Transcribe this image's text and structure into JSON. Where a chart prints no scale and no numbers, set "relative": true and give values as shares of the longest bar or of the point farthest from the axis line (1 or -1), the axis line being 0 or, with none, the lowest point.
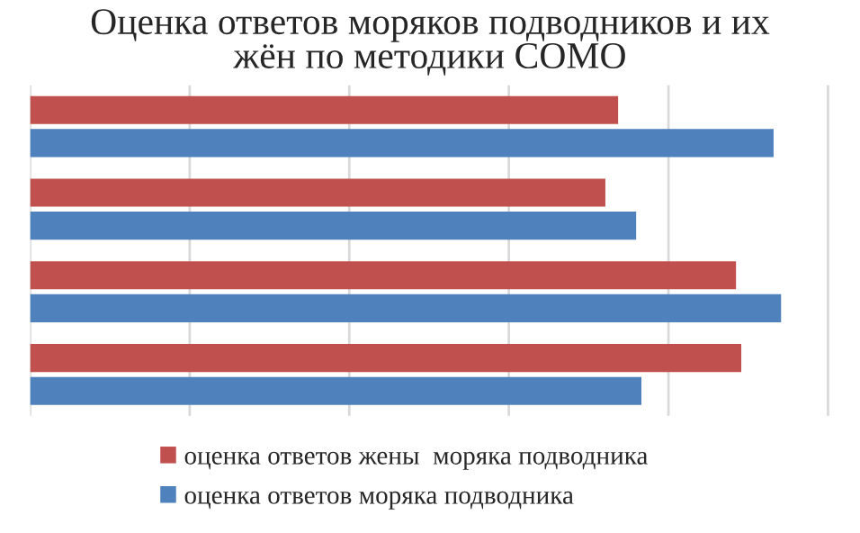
{
  "chart_data": {
    "type": "bar",
    "orientation": "horizontal",
    "relative": true,
    "title": "Оценка ответов моряков подводников и их\nжён по методики СОМО",
    "categories": [
      null,
      null,
      null,
      null
    ],
    "series": [
      {
        "name": "оценка ответов жены  моряка подводника",
        "color": "#c0504d",
        "values": [
          0.783,
          0.766,
          0.94,
          0.947
        ]
      },
      {
        "name": "оценка ответов моряка подводника",
        "color": "#4f81bd",
        "values": [
          0.99,
          0.807,
          1.0,
          0.814
        ]
      }
    ],
    "grid": "x",
    "legend": "bottom"
  }
}
